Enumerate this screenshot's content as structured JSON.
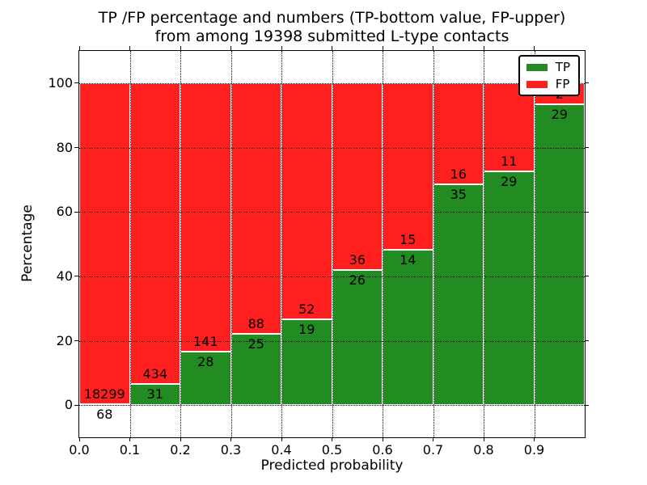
{
  "figure": {
    "title_line1": "TP /FP percentage and numbers (TP-bottom value, FP-upper)",
    "title_line2": "from among 19398 submitted L-type contacts"
  },
  "chart_data": {
    "type": "bar",
    "stacked": true,
    "normalized_to_percent": true,
    "title": "TP /FP percentage and numbers (TP-bottom value, FP-upper)\nfrom among 19398 submitted L-type contacts",
    "xlabel": "Predicted probability",
    "ylabel": "Percentage",
    "xlim": [
      0.0,
      1.0
    ],
    "ylim": [
      -10,
      110
    ],
    "xticks": [
      0.0,
      0.1,
      0.2,
      0.3,
      0.4,
      0.5,
      0.6,
      0.7,
      0.8,
      0.9
    ],
    "xtick_labels": [
      "0.0",
      "0.1",
      "0.2",
      "0.3",
      "0.4",
      "0.5",
      "0.6",
      "0.7",
      "0.8",
      "0.9"
    ],
    "yticks": [
      0,
      20,
      40,
      60,
      80,
      100
    ],
    "grid": "dotted",
    "legend_position": "upper right",
    "colors": {
      "tp": "#228B22",
      "fp": "#ff1f1f"
    },
    "bin_edges": [
      0.0,
      0.1,
      0.2,
      0.3,
      0.4,
      0.5,
      0.6,
      0.7,
      0.8,
      0.9,
      1.0
    ],
    "series": [
      {
        "name": "TP",
        "role": "bottom",
        "counts": [
          68,
          31,
          28,
          25,
          19,
          26,
          14,
          35,
          29,
          29
        ]
      },
      {
        "name": "FP",
        "role": "top",
        "counts": [
          18299,
          434,
          141,
          88,
          52,
          36,
          15,
          16,
          11,
          2
        ]
      }
    ],
    "total_contacts_in_title": 19398
  }
}
